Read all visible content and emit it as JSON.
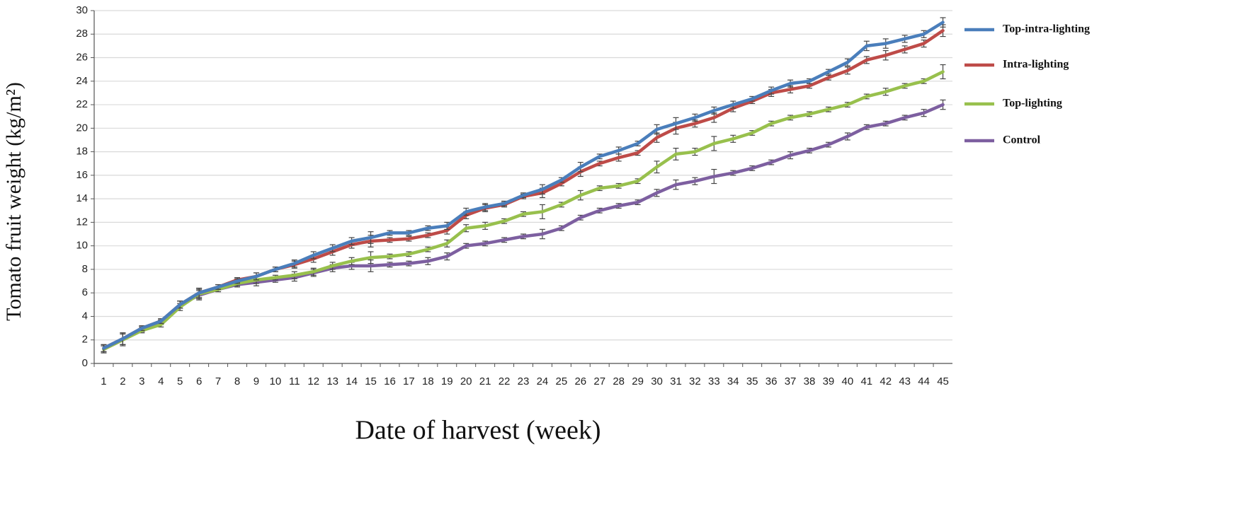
{
  "chart_data": {
    "type": "line",
    "x_label": "Date of harvest (week)",
    "y_label": "Tomato fruit weight (kg/m²)",
    "categories": [
      "1",
      "2",
      "3",
      "4",
      "5",
      "6",
      "7",
      "8",
      "9",
      "10",
      "11",
      "12",
      "13",
      "14",
      "15",
      "16",
      "17",
      "18",
      "19",
      "20",
      "21",
      "22",
      "23",
      "24",
      "25",
      "26",
      "27",
      "28",
      "29",
      "30",
      "31",
      "32",
      "33",
      "34",
      "35",
      "36",
      "37",
      "38",
      "39",
      "40",
      "41",
      "42",
      "43",
      "44",
      "45"
    ],
    "ylim": [
      0,
      30
    ],
    "yticks": [
      0,
      2,
      4,
      6,
      8,
      10,
      12,
      14,
      16,
      18,
      20,
      22,
      24,
      26,
      28,
      30
    ],
    "grid": true,
    "legend": "right",
    "series": [
      {
        "name": "Top-intra-lighting",
        "color": "#4a7ebb",
        "values": [
          1.3,
          2.1,
          3.0,
          3.6,
          5.0,
          6.0,
          6.5,
          7.0,
          7.4,
          8.0,
          8.5,
          9.2,
          9.8,
          10.4,
          10.7,
          11.1,
          11.1,
          11.5,
          11.7,
          12.9,
          13.3,
          13.6,
          14.3,
          14.8,
          15.6,
          16.7,
          17.6,
          18.1,
          18.7,
          19.9,
          20.4,
          20.9,
          21.5,
          22.0,
          22.5,
          23.2,
          23.8,
          24.0,
          24.8,
          25.6,
          27.0,
          27.2,
          27.6,
          28.0,
          29.0
        ],
        "errors": [
          0.3,
          0.5,
          0.2,
          0.2,
          0.3,
          0.4,
          0.2,
          0.2,
          0.3,
          0.2,
          0.3,
          0.3,
          0.3,
          0.3,
          0.5,
          0.2,
          0.2,
          0.2,
          0.3,
          0.3,
          0.3,
          0.2,
          0.2,
          0.4,
          0.2,
          0.4,
          0.2,
          0.3,
          0.2,
          0.4,
          0.5,
          0.3,
          0.3,
          0.3,
          0.2,
          0.3,
          0.3,
          0.2,
          0.2,
          0.3,
          0.4,
          0.4,
          0.3,
          0.3,
          0.4
        ]
      },
      {
        "name": "Intra-lighting",
        "color": "#be4b48",
        "values": [
          1.3,
          2.1,
          3.0,
          3.6,
          5.0,
          6.0,
          6.5,
          7.1,
          7.4,
          8.0,
          8.4,
          8.9,
          9.5,
          10.1,
          10.4,
          10.5,
          10.6,
          10.9,
          11.3,
          12.6,
          13.2,
          13.5,
          14.2,
          14.5,
          15.3,
          16.3,
          17.0,
          17.5,
          17.9,
          19.2,
          20.0,
          20.4,
          20.9,
          21.7,
          22.3,
          23.0,
          23.3,
          23.6,
          24.3,
          24.9,
          25.8,
          26.2,
          26.7,
          27.2,
          28.3
        ],
        "errors": [
          0.3,
          0.5,
          0.2,
          0.2,
          0.3,
          0.4,
          0.2,
          0.2,
          0.3,
          0.2,
          0.3,
          0.3,
          0.3,
          0.3,
          0.5,
          0.2,
          0.2,
          0.2,
          0.3,
          0.3,
          0.3,
          0.2,
          0.2,
          0.4,
          0.2,
          0.4,
          0.2,
          0.3,
          0.2,
          0.4,
          0.5,
          0.3,
          0.4,
          0.3,
          0.2,
          0.3,
          0.3,
          0.2,
          0.2,
          0.3,
          0.3,
          0.4,
          0.3,
          0.3,
          0.5
        ]
      },
      {
        "name": "Top-lighting",
        "color": "#98c04d",
        "values": [
          1.2,
          2.0,
          2.8,
          3.3,
          4.8,
          5.9,
          6.3,
          6.8,
          7.1,
          7.3,
          7.5,
          7.8,
          8.3,
          8.7,
          9.0,
          9.1,
          9.3,
          9.7,
          10.2,
          11.5,
          11.7,
          12.1,
          12.7,
          12.9,
          13.5,
          14.3,
          14.9,
          15.1,
          15.5,
          16.7,
          17.8,
          18.0,
          18.7,
          19.1,
          19.6,
          20.4,
          20.9,
          21.2,
          21.6,
          22.0,
          22.7,
          23.1,
          23.6,
          24.0,
          24.8
        ],
        "errors": [
          0.3,
          0.5,
          0.2,
          0.2,
          0.3,
          0.4,
          0.2,
          0.2,
          0.3,
          0.2,
          0.3,
          0.3,
          0.3,
          0.3,
          0.5,
          0.2,
          0.2,
          0.2,
          0.3,
          0.3,
          0.3,
          0.2,
          0.2,
          0.6,
          0.2,
          0.4,
          0.2,
          0.2,
          0.2,
          0.5,
          0.5,
          0.3,
          0.6,
          0.3,
          0.2,
          0.2,
          0.2,
          0.2,
          0.2,
          0.2,
          0.2,
          0.3,
          0.2,
          0.2,
          0.6
        ]
      },
      {
        "name": "Control",
        "color": "#7d5fa0",
        "values": [
          1.2,
          2.1,
          2.9,
          3.5,
          5.0,
          5.8,
          6.3,
          6.7,
          6.9,
          7.1,
          7.3,
          7.7,
          8.1,
          8.3,
          8.3,
          8.4,
          8.5,
          8.7,
          9.1,
          10.0,
          10.2,
          10.5,
          10.8,
          11.0,
          11.5,
          12.4,
          13.0,
          13.4,
          13.7,
          14.5,
          15.2,
          15.5,
          15.9,
          16.2,
          16.6,
          17.1,
          17.7,
          18.1,
          18.6,
          19.3,
          20.1,
          20.4,
          20.9,
          21.3,
          22.0
        ],
        "errors": [
          0.3,
          0.5,
          0.2,
          0.2,
          0.3,
          0.4,
          0.2,
          0.2,
          0.3,
          0.2,
          0.3,
          0.3,
          0.3,
          0.3,
          0.5,
          0.2,
          0.2,
          0.3,
          0.3,
          0.2,
          0.2,
          0.2,
          0.2,
          0.4,
          0.2,
          0.2,
          0.2,
          0.2,
          0.2,
          0.3,
          0.4,
          0.3,
          0.6,
          0.2,
          0.2,
          0.2,
          0.3,
          0.2,
          0.2,
          0.3,
          0.2,
          0.2,
          0.2,
          0.3,
          0.4
        ]
      }
    ]
  }
}
